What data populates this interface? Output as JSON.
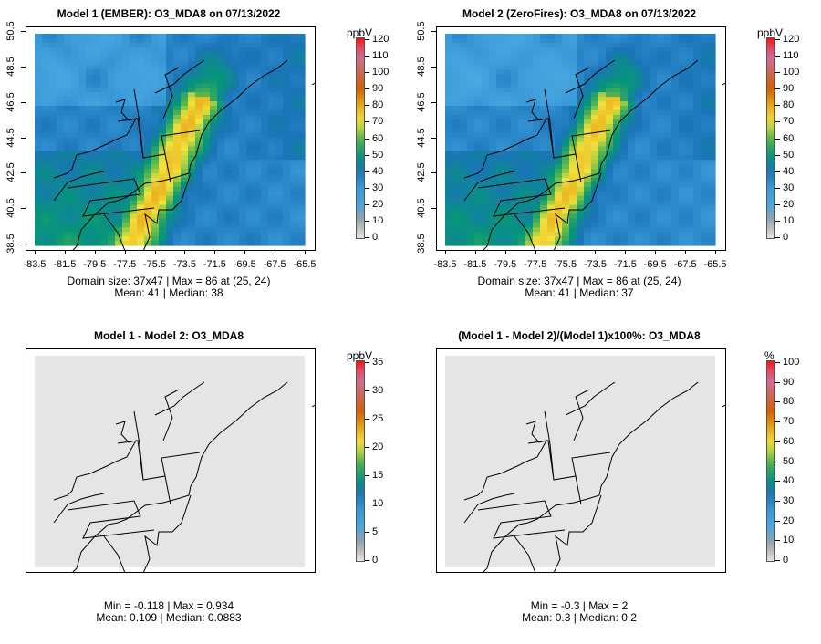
{
  "panels": [
    {
      "title": "Model 1 (EMBER): O3_MDA8 on 07/13/2022",
      "unit": "ppbV",
      "cb_ticks": [
        "0",
        "10",
        "20",
        "30",
        "40",
        "50",
        "60",
        "70",
        "80",
        "90",
        "100",
        "110",
        "120"
      ],
      "cb_max": 120,
      "stats": [
        "Domain size: 37x47 | Max = 86 at (25, 24)",
        "Mean: 41 |  Median: 38"
      ],
      "field": "o3",
      "shift": 0
    },
    {
      "title": "Model 2 (ZeroFires): O3_MDA8 on 07/13/2022",
      "unit": "ppbV",
      "cb_ticks": [
        "0",
        "10",
        "20",
        "30",
        "40",
        "50",
        "60",
        "70",
        "80",
        "90",
        "100",
        "110",
        "120"
      ],
      "cb_max": 120,
      "stats": [
        "Domain size: 37x47 | Max = 86 at (25, 24)",
        "Mean: 41 |  Median: 37"
      ],
      "field": "o3",
      "shift": -1
    },
    {
      "title": "Model 1 - Model 2: O3_MDA8",
      "unit": "ppbV",
      "cb_ticks": [
        "0",
        "5",
        "10",
        "15",
        "20",
        "25",
        "30",
        "35"
      ],
      "cb_max": 35,
      "stats": [
        "Min = -0.118 | Max = 0.934",
        "Mean: 0.109 |  Median: 0.0883"
      ],
      "field": "flat"
    },
    {
      "title": "(Model 1 - Model 2)/(Model 1)x100%: O3_MDA8",
      "unit": "%",
      "cb_ticks": [
        "0",
        "10",
        "20",
        "30",
        "40",
        "50",
        "60",
        "70",
        "80",
        "90",
        "100"
      ],
      "cb_max": 100,
      "stats": [
        "Min = -0.3 | Max = 2",
        "Mean: 0.3 |  Median: 0.2"
      ],
      "field": "flat"
    }
  ],
  "chart_data": {
    "type": "heatmap",
    "grid": "37x47",
    "x_ticks": [
      "-83.5",
      "-81.5",
      "-79.5",
      "-77.5",
      "-75.5",
      "-73.5",
      "-71.5",
      "-69.5",
      "-67.5",
      "-65.5"
    ],
    "y_ticks": [
      "38.5",
      "40.5",
      "42.5",
      "44.5",
      "46.5",
      "48.5",
      "50.5"
    ],
    "xlim": [
      -83.5,
      -65.5
    ],
    "ylim": [
      38.5,
      50.5
    ],
    "colors": {
      "0": "#e6e6e6",
      "10": "#a0a0a0",
      "20": "#4aa8e0",
      "30": "#3a9ad8",
      "40": "#1a74b8",
      "50": "#06957a",
      "60": "#5cb84a",
      "70": "#f2e23c",
      "80": "#e8a818",
      "90": "#d26000",
      "100": "#d06858",
      "110": "#d070a0",
      "120": "#ff1010"
    }
  }
}
